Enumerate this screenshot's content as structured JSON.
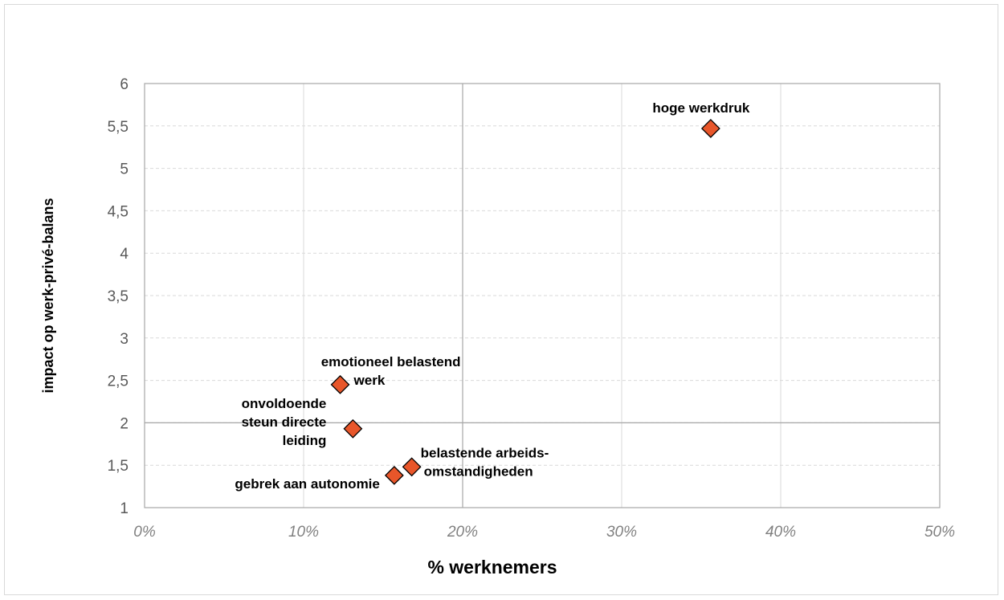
{
  "chart_data": {
    "type": "scatter",
    "xlabel": "% werknemers",
    "ylabel": "impact op werk-privé-balans",
    "xlim": [
      0,
      50
    ],
    "ylim": [
      1,
      6
    ],
    "x_ticks": [
      "0%",
      "10%",
      "20%",
      "30%",
      "40%",
      "50%"
    ],
    "y_ticks": [
      "1",
      "1,5",
      "2",
      "2,5",
      "3",
      "3,5",
      "4",
      "4,5",
      "5",
      "5,5",
      "6"
    ],
    "grid": true,
    "quadrant_lines": {
      "x": 20,
      "y": 2
    },
    "marker_color": "#E8562A",
    "points": [
      {
        "label": "hoge werkdruk",
        "label_lines": [
          "hoge werkdruk"
        ],
        "x": 35.6,
        "y": 5.47
      },
      {
        "label": "emotioneel belastend werk",
        "label_lines": [
          "emotioneel belastend",
          "werk"
        ],
        "x": 12.3,
        "y": 2.45
      },
      {
        "label": "onvoldoende steun directe leiding",
        "label_lines": [
          "onvoldoende",
          "steun directe",
          "leiding"
        ],
        "x": 13.1,
        "y": 1.93
      },
      {
        "label": "belastende arbeids-omstandigheden",
        "label_lines": [
          "belastende arbeids-",
          "omstandigheden"
        ],
        "x": 16.8,
        "y": 1.48
      },
      {
        "label": "gebrek aan autonomie",
        "label_lines": [
          "gebrek aan autonomie"
        ],
        "x": 15.7,
        "y": 1.38
      }
    ]
  }
}
